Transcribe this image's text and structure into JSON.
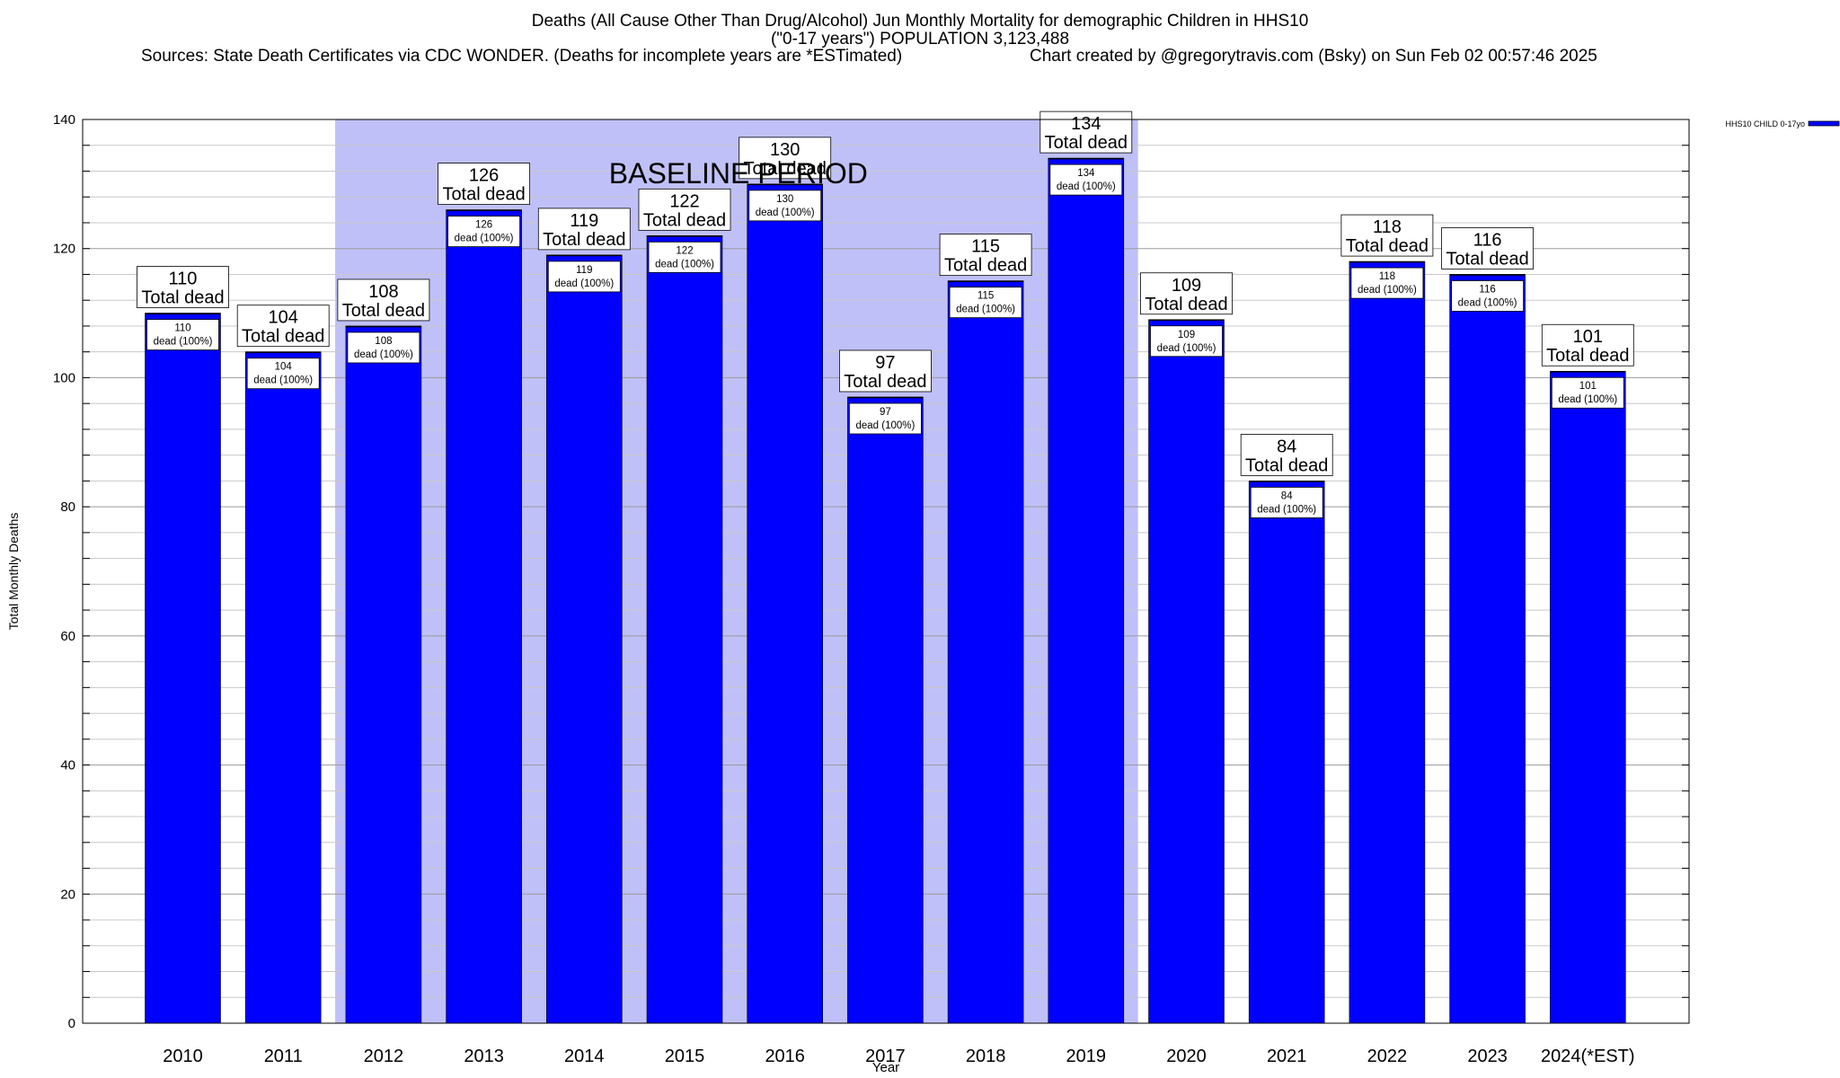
{
  "chart_data": {
    "type": "bar",
    "title": "Deaths (All Cause Other Than Drug/Alcohol) Jun Monthly Mortality for demographic Children in HHS10",
    "subtitle": "(\"0-17 years\") POPULATION 3,123,488",
    "sources": "Sources: State Death Certificates via CDC WONDER. (Deaths for incomplete years are *ESTimated)",
    "credit": "Chart created by @gregorytravis.com (Bsky) on Sun Feb 02 00:57:46 2025",
    "xlabel": "Year",
    "ylabel": "Total Monthly Deaths",
    "ylim": [
      0,
      140
    ],
    "yticks": [
      0,
      20,
      40,
      60,
      80,
      100,
      120,
      140
    ],
    "grid": true,
    "legend_position": "top-right",
    "categories": [
      "2010",
      "2011",
      "2012",
      "2013",
      "2014",
      "2015",
      "2016",
      "2017",
      "2018",
      "2019",
      "2020",
      "2021",
      "2022",
      "2023",
      "2024(*EST)"
    ],
    "series": [
      {
        "name": "HHS10 CHILD 0-17yo",
        "color": "#0000ff",
        "values": [
          110,
          104,
          108,
          126,
          119,
          122,
          130,
          97,
          115,
          134,
          109,
          84,
          118,
          116,
          101
        ]
      }
    ],
    "total_label": "Total dead",
    "inner_label": "dead (100%)",
    "baseline": {
      "label": "BASELINE PERIOD",
      "start": "2012",
      "end": "2019",
      "color": "#c0c0f8"
    }
  }
}
